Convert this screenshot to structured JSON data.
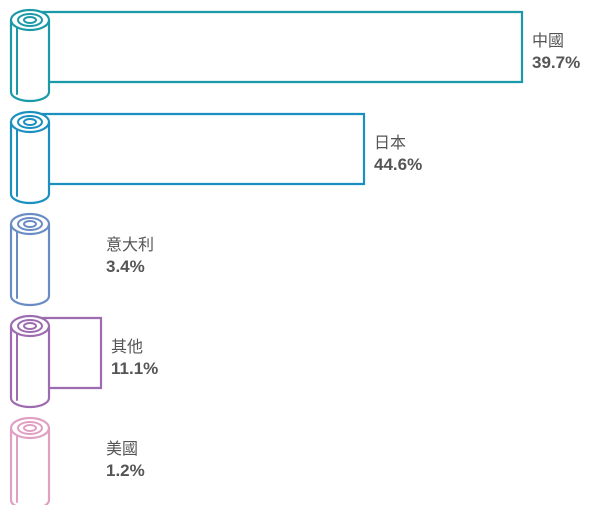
{
  "chart_data": {
    "type": "bar",
    "orientation": "horizontal",
    "categories": [
      "中國",
      "日本",
      "意大利",
      "其他",
      "美國"
    ],
    "values": [
      39.7,
      44.6,
      3.4,
      11.1,
      1.2
    ],
    "value_labels": [
      "39.7%",
      "44.6%",
      "3.4%",
      "11.1%",
      "1.2%"
    ],
    "colors": [
      "#1a9aa6",
      "#1a8fc0",
      "#6a8cc4",
      "#9d6cb0",
      "#e0a0c4"
    ],
    "title": "",
    "xlabel": "",
    "ylabel": ""
  }
}
